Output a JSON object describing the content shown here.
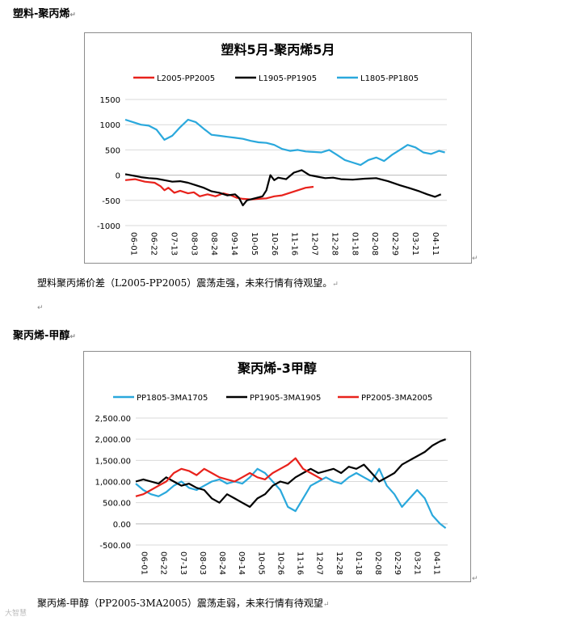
{
  "section1": {
    "heading": "塑料-聚丙烯",
    "paragraph": "塑料聚丙烯价差（L2005-PP2005）震荡走强，未来行情有待观望。"
  },
  "section2": {
    "heading": "聚丙烯-甲醇",
    "paragraph": "聚丙烯-甲醇（PP2005-3MA2005）震荡走弱，未来行情有待观望"
  },
  "watermark": "大智慧",
  "para_mark": "↵",
  "chart_data": [
    {
      "type": "line",
      "title": "塑料5月-聚丙烯5月",
      "x_ticks": [
        "06-01",
        "06-22",
        "07-13",
        "08-03",
        "08-24",
        "09-14",
        "10-05",
        "10-26",
        "11-16",
        "12-07",
        "12-28",
        "01-18",
        "02-08",
        "02-29",
        "03-21",
        "04-11"
      ],
      "ylim": [
        -1000,
        1500
      ],
      "y_ticks": [
        -1000,
        -500,
        0,
        500,
        1000,
        1500
      ],
      "y_tick_labels": [
        "-1000",
        "-500",
        "0",
        "500",
        "1000",
        "1500"
      ],
      "legend_position": "top",
      "series": [
        {
          "name": "L2005-PP2005",
          "color": "#e8221c",
          "points": [
            [
              0,
              -100
            ],
            [
              5,
              -80
            ],
            [
              10,
              -130
            ],
            [
              15,
              -150
            ],
            [
              18,
              -220
            ],
            [
              20,
              -300
            ],
            [
              22,
              -250
            ],
            [
              25,
              -350
            ],
            [
              28,
              -310
            ],
            [
              32,
              -360
            ],
            [
              35,
              -340
            ],
            [
              38,
              -420
            ],
            [
              42,
              -380
            ],
            [
              46,
              -420
            ],
            [
              50,
              -360
            ],
            [
              54,
              -400
            ],
            [
              57,
              -450
            ],
            [
              60,
              -470
            ],
            [
              64,
              -480
            ],
            [
              68,
              -470
            ],
            [
              72,
              -460
            ],
            [
              76,
              -420
            ],
            [
              80,
              -400
            ],
            [
              84,
              -350
            ],
            [
              88,
              -300
            ],
            [
              92,
              -250
            ],
            [
              96,
              -230
            ]
          ]
        },
        {
          "name": "L1905-PP1905",
          "color": "#000000",
          "points": [
            [
              0,
              20
            ],
            [
              4,
              -10
            ],
            [
              8,
              -40
            ],
            [
              12,
              -60
            ],
            [
              16,
              -70
            ],
            [
              20,
              -100
            ],
            [
              24,
              -130
            ],
            [
              28,
              -120
            ],
            [
              32,
              -150
            ],
            [
              36,
              -200
            ],
            [
              40,
              -250
            ],
            [
              44,
              -320
            ],
            [
              48,
              -350
            ],
            [
              52,
              -400
            ],
            [
              56,
              -380
            ],
            [
              58,
              -450
            ],
            [
              60,
              -600
            ],
            [
              62,
              -500
            ],
            [
              64,
              -480
            ],
            [
              67,
              -450
            ],
            [
              70,
              -420
            ],
            [
              72,
              -300
            ],
            [
              74,
              0
            ],
            [
              76,
              -100
            ],
            [
              78,
              -50
            ],
            [
              82,
              -80
            ],
            [
              86,
              50
            ],
            [
              90,
              100
            ],
            [
              94,
              0
            ],
            [
              98,
              -30
            ],
            [
              102,
              -60
            ],
            [
              106,
              -50
            ],
            [
              110,
              -80
            ],
            [
              116,
              -90
            ],
            [
              122,
              -70
            ],
            [
              128,
              -60
            ],
            [
              134,
              -120
            ],
            [
              140,
              -200
            ],
            [
              146,
              -270
            ],
            [
              150,
              -320
            ],
            [
              154,
              -380
            ],
            [
              158,
              -430
            ],
            [
              161,
              -380
            ]
          ]
        },
        {
          "name": "L1805-PP1805",
          "color": "#2aa8dc",
          "points": [
            [
              0,
              1100
            ],
            [
              4,
              1050
            ],
            [
              8,
              1000
            ],
            [
              12,
              980
            ],
            [
              16,
              900
            ],
            [
              20,
              700
            ],
            [
              24,
              780
            ],
            [
              28,
              950
            ],
            [
              32,
              1100
            ],
            [
              36,
              1050
            ],
            [
              40,
              920
            ],
            [
              44,
              800
            ],
            [
              48,
              780
            ],
            [
              52,
              760
            ],
            [
              56,
              740
            ],
            [
              60,
              720
            ],
            [
              64,
              680
            ],
            [
              68,
              650
            ],
            [
              72,
              640
            ],
            [
              76,
              600
            ],
            [
              80,
              520
            ],
            [
              84,
              480
            ],
            [
              88,
              500
            ],
            [
              92,
              470
            ],
            [
              96,
              460
            ],
            [
              100,
              450
            ],
            [
              104,
              500
            ],
            [
              108,
              400
            ],
            [
              112,
              300
            ],
            [
              116,
              250
            ],
            [
              120,
              200
            ],
            [
              124,
              300
            ],
            [
              128,
              350
            ],
            [
              132,
              280
            ],
            [
              136,
              400
            ],
            [
              140,
              500
            ],
            [
              144,
              600
            ],
            [
              148,
              550
            ],
            [
              152,
              450
            ],
            [
              156,
              420
            ],
            [
              160,
              480
            ],
            [
              163,
              450
            ]
          ]
        }
      ]
    },
    {
      "type": "line",
      "title": "聚丙烯-3甲醇",
      "x_ticks": [
        "06-01",
        "06-22",
        "07-13",
        "08-03",
        "08-24",
        "09-14",
        "10-05",
        "10-26",
        "11-16",
        "12-07",
        "12-28",
        "01-18",
        "02-08",
        "02-29",
        "03-21",
        "04-11"
      ],
      "ylim": [
        -500,
        2500
      ],
      "y_ticks": [
        -500,
        0,
        500,
        1000,
        1500,
        2000,
        2500
      ],
      "y_tick_labels": [
        "-500.00",
        "0.00",
        "500.00",
        "1,000.00",
        "1,500.00",
        "2,000.00",
        "2,500.00"
      ],
      "legend_position": "top",
      "series": [
        {
          "name": "PP1805-3MA1705",
          "color": "#2aa8dc",
          "points": [
            [
              0,
              950
            ],
            [
              4,
              800
            ],
            [
              8,
              700
            ],
            [
              12,
              650
            ],
            [
              16,
              750
            ],
            [
              20,
              900
            ],
            [
              24,
              1000
            ],
            [
              28,
              850
            ],
            [
              32,
              800
            ],
            [
              36,
              900
            ],
            [
              40,
              1000
            ],
            [
              44,
              1050
            ],
            [
              48,
              950
            ],
            [
              52,
              1000
            ],
            [
              56,
              950
            ],
            [
              60,
              1100
            ],
            [
              64,
              1300
            ],
            [
              68,
              1200
            ],
            [
              72,
              1000
            ],
            [
              76,
              800
            ],
            [
              80,
              400
            ],
            [
              84,
              300
            ],
            [
              88,
              600
            ],
            [
              92,
              900
            ],
            [
              96,
              1000
            ],
            [
              100,
              1100
            ],
            [
              104,
              1000
            ],
            [
              108,
              950
            ],
            [
              112,
              1100
            ],
            [
              116,
              1200
            ],
            [
              120,
              1100
            ],
            [
              124,
              1000
            ],
            [
              128,
              1300
            ],
            [
              132,
              900
            ],
            [
              136,
              700
            ],
            [
              140,
              400
            ],
            [
              144,
              600
            ],
            [
              148,
              800
            ],
            [
              152,
              600
            ],
            [
              156,
              200
            ],
            [
              160,
              0
            ],
            [
              163,
              -100
            ]
          ]
        },
        {
          "name": "PP1905-3MA1905",
          "color": "#000000",
          "points": [
            [
              0,
              1000
            ],
            [
              4,
              1050
            ],
            [
              8,
              1000
            ],
            [
              12,
              950
            ],
            [
              16,
              1100
            ],
            [
              20,
              1000
            ],
            [
              24,
              900
            ],
            [
              28,
              950
            ],
            [
              32,
              850
            ],
            [
              36,
              800
            ],
            [
              40,
              600
            ],
            [
              44,
              500
            ],
            [
              48,
              700
            ],
            [
              52,
              600
            ],
            [
              56,
              500
            ],
            [
              60,
              400
            ],
            [
              64,
              600
            ],
            [
              68,
              700
            ],
            [
              72,
              900
            ],
            [
              76,
              1000
            ],
            [
              80,
              950
            ],
            [
              84,
              1100
            ],
            [
              88,
              1200
            ],
            [
              92,
              1300
            ],
            [
              96,
              1200
            ],
            [
              100,
              1250
            ],
            [
              104,
              1300
            ],
            [
              108,
              1200
            ],
            [
              112,
              1350
            ],
            [
              116,
              1300
            ],
            [
              120,
              1400
            ],
            [
              124,
              1200
            ],
            [
              128,
              1000
            ],
            [
              132,
              1100
            ],
            [
              136,
              1200
            ],
            [
              140,
              1400
            ],
            [
              144,
              1500
            ],
            [
              148,
              1600
            ],
            [
              152,
              1700
            ],
            [
              156,
              1850
            ],
            [
              160,
              1950
            ],
            [
              163,
              2000
            ]
          ]
        },
        {
          "name": "PP2005-3MA2005",
          "color": "#e8221c",
          "points": [
            [
              0,
              650
            ],
            [
              4,
              700
            ],
            [
              8,
              800
            ],
            [
              12,
              900
            ],
            [
              16,
              1000
            ],
            [
              20,
              1200
            ],
            [
              24,
              1300
            ],
            [
              28,
              1250
            ],
            [
              32,
              1150
            ],
            [
              36,
              1300
            ],
            [
              40,
              1200
            ],
            [
              44,
              1100
            ],
            [
              48,
              1050
            ],
            [
              52,
              1000
            ],
            [
              56,
              1100
            ],
            [
              60,
              1200
            ],
            [
              64,
              1100
            ],
            [
              68,
              1050
            ],
            [
              72,
              1200
            ],
            [
              76,
              1300
            ],
            [
              80,
              1400
            ],
            [
              84,
              1550
            ],
            [
              88,
              1300
            ],
            [
              92,
              1200
            ],
            [
              96,
              1100
            ],
            [
              98,
              1050
            ]
          ]
        }
      ]
    }
  ]
}
